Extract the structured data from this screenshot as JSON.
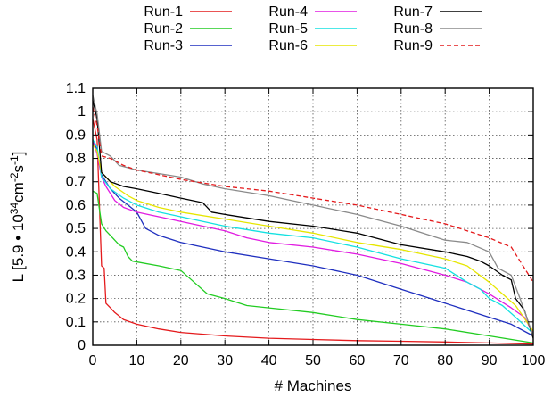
{
  "chart_data": {
    "type": "line",
    "title": "",
    "xlabel": "# Machines",
    "ylabel": {
      "prefix": "L [5.9 • 10",
      "exp1": "34",
      "mid": "cm",
      "exp2": "-2",
      "mid2": "s",
      "exp3": "-1",
      "suffix": "]"
    },
    "xlim": [
      0,
      100
    ],
    "ylim": [
      0,
      1.1
    ],
    "xticks": [
      "0",
      "10",
      "20",
      "30",
      "40",
      "50",
      "60",
      "70",
      "80",
      "90",
      "100"
    ],
    "yticks": [
      "0",
      "0.1",
      "0.2",
      "0.3",
      "0.4",
      "0.5",
      "0.6",
      "0.7",
      "0.8",
      "0.9",
      "1",
      "1.1"
    ],
    "grid": true,
    "legend_position": "top",
    "series": [
      {
        "name": "Run-1",
        "color": "#e41a1c",
        "dash": "solid",
        "points": [
          [
            0,
            0.97
          ],
          [
            1,
            0.88
          ],
          [
            2,
            0.34
          ],
          [
            2.6,
            0.33
          ],
          [
            3,
            0.18
          ],
          [
            4,
            0.16
          ],
          [
            5,
            0.14
          ],
          [
            7,
            0.11
          ],
          [
            10,
            0.09
          ],
          [
            15,
            0.07
          ],
          [
            20,
            0.055
          ],
          [
            30,
            0.04
          ],
          [
            40,
            0.03
          ],
          [
            50,
            0.025
          ],
          [
            60,
            0.02
          ],
          [
            70,
            0.017
          ],
          [
            80,
            0.014
          ],
          [
            90,
            0.01
          ],
          [
            100,
            0.005
          ]
        ]
      },
      {
        "name": "Run-2",
        "color": "#22cc22",
        "dash": "solid",
        "points": [
          [
            0,
            0.66
          ],
          [
            1,
            0.65
          ],
          [
            2,
            0.52
          ],
          [
            3,
            0.49
          ],
          [
            4,
            0.47
          ],
          [
            5,
            0.45
          ],
          [
            6,
            0.43
          ],
          [
            7,
            0.42
          ],
          [
            8,
            0.38
          ],
          [
            9,
            0.36
          ],
          [
            15,
            0.34
          ],
          [
            20,
            0.32
          ],
          [
            23,
            0.27
          ],
          [
            26,
            0.22
          ],
          [
            30,
            0.2
          ],
          [
            35,
            0.17
          ],
          [
            40,
            0.16
          ],
          [
            50,
            0.14
          ],
          [
            60,
            0.11
          ],
          [
            70,
            0.09
          ],
          [
            80,
            0.07
          ],
          [
            90,
            0.04
          ],
          [
            100,
            0.01
          ]
        ]
      },
      {
        "name": "Run-3",
        "color": "#1f2fbf",
        "dash": "solid",
        "points": [
          [
            0,
            0.87
          ],
          [
            1,
            0.84
          ],
          [
            2,
            0.73
          ],
          [
            3,
            0.7
          ],
          [
            4,
            0.67
          ],
          [
            6,
            0.63
          ],
          [
            8,
            0.6
          ],
          [
            10,
            0.57
          ],
          [
            12,
            0.5
          ],
          [
            15,
            0.47
          ],
          [
            20,
            0.44
          ],
          [
            25,
            0.42
          ],
          [
            30,
            0.4
          ],
          [
            40,
            0.37
          ],
          [
            50,
            0.34
          ],
          [
            60,
            0.3
          ],
          [
            70,
            0.24
          ],
          [
            75,
            0.21
          ],
          [
            80,
            0.18
          ],
          [
            85,
            0.15
          ],
          [
            90,
            0.12
          ],
          [
            95,
            0.09
          ],
          [
            100,
            0.04
          ]
        ]
      },
      {
        "name": "Run-4",
        "color": "#e11be1",
        "dash": "solid",
        "points": [
          [
            0,
            0.88
          ],
          [
            1,
            0.82
          ],
          [
            2,
            0.72
          ],
          [
            3,
            0.68
          ],
          [
            5,
            0.62
          ],
          [
            7,
            0.59
          ],
          [
            10,
            0.57
          ],
          [
            15,
            0.55
          ],
          [
            20,
            0.53
          ],
          [
            25,
            0.51
          ],
          [
            30,
            0.49
          ],
          [
            35,
            0.46
          ],
          [
            40,
            0.44
          ],
          [
            50,
            0.42
          ],
          [
            60,
            0.39
          ],
          [
            70,
            0.35
          ],
          [
            80,
            0.3
          ],
          [
            85,
            0.27
          ],
          [
            90,
            0.22
          ],
          [
            95,
            0.16
          ],
          [
            98,
            0.12
          ],
          [
            100,
            0.05
          ]
        ]
      },
      {
        "name": "Run-5",
        "color": "#14e1e1",
        "dash": "solid",
        "points": [
          [
            0,
            0.88
          ],
          [
            1,
            0.85
          ],
          [
            2,
            0.72
          ],
          [
            4,
            0.67
          ],
          [
            7,
            0.63
          ],
          [
            10,
            0.6
          ],
          [
            15,
            0.57
          ],
          [
            20,
            0.55
          ],
          [
            30,
            0.51
          ],
          [
            40,
            0.48
          ],
          [
            50,
            0.46
          ],
          [
            60,
            0.42
          ],
          [
            70,
            0.37
          ],
          [
            80,
            0.33
          ],
          [
            85,
            0.27
          ],
          [
            88,
            0.24
          ],
          [
            90,
            0.2
          ],
          [
            93,
            0.17
          ],
          [
            96,
            0.12
          ],
          [
            100,
            0.05
          ]
        ]
      },
      {
        "name": "Run-6",
        "color": "#e6e600",
        "dash": "solid",
        "points": [
          [
            0,
            0.86
          ],
          [
            1,
            0.83
          ],
          [
            2,
            0.74
          ],
          [
            3,
            0.72
          ],
          [
            5,
            0.68
          ],
          [
            8,
            0.64
          ],
          [
            10,
            0.62
          ],
          [
            15,
            0.59
          ],
          [
            20,
            0.57
          ],
          [
            30,
            0.54
          ],
          [
            40,
            0.51
          ],
          [
            50,
            0.48
          ],
          [
            60,
            0.44
          ],
          [
            70,
            0.41
          ],
          [
            80,
            0.37
          ],
          [
            85,
            0.34
          ],
          [
            90,
            0.27
          ],
          [
            93,
            0.22
          ],
          [
            96,
            0.17
          ],
          [
            100,
            0.06
          ]
        ]
      },
      {
        "name": "Run-7",
        "color": "#000000",
        "dash": "solid",
        "points": [
          [
            0,
            1.05
          ],
          [
            1,
            0.97
          ],
          [
            2,
            0.74
          ],
          [
            4,
            0.7
          ],
          [
            7,
            0.68
          ],
          [
            10,
            0.67
          ],
          [
            15,
            0.65
          ],
          [
            20,
            0.63
          ],
          [
            25,
            0.61
          ],
          [
            27,
            0.57
          ],
          [
            30,
            0.56
          ],
          [
            40,
            0.53
          ],
          [
            50,
            0.51
          ],
          [
            60,
            0.48
          ],
          [
            70,
            0.43
          ],
          [
            80,
            0.4
          ],
          [
            85,
            0.38
          ],
          [
            88,
            0.36
          ],
          [
            90,
            0.34
          ],
          [
            93,
            0.3
          ],
          [
            95,
            0.28
          ],
          [
            96,
            0.2
          ],
          [
            98,
            0.15
          ],
          [
            100,
            0.03
          ]
        ]
      },
      {
        "name": "Run-8",
        "color": "#8a8a8a",
        "dash": "solid",
        "points": [
          [
            0,
            1.07
          ],
          [
            1,
            0.99
          ],
          [
            2,
            0.83
          ],
          [
            4,
            0.81
          ],
          [
            6,
            0.77
          ],
          [
            10,
            0.75
          ],
          [
            20,
            0.72
          ],
          [
            25,
            0.69
          ],
          [
            30,
            0.67
          ],
          [
            40,
            0.64
          ],
          [
            50,
            0.6
          ],
          [
            60,
            0.56
          ],
          [
            70,
            0.51
          ],
          [
            80,
            0.45
          ],
          [
            85,
            0.44
          ],
          [
            90,
            0.4
          ],
          [
            92,
            0.33
          ],
          [
            95,
            0.3
          ],
          [
            97,
            0.2
          ],
          [
            100,
            0.04
          ]
        ]
      },
      {
        "name": "Run-9",
        "color": "#e41a1c",
        "dash": "dashed",
        "points": [
          [
            0,
            1.02
          ],
          [
            1,
            0.94
          ],
          [
            2,
            0.81
          ],
          [
            4,
            0.8
          ],
          [
            7,
            0.77
          ],
          [
            10,
            0.75
          ],
          [
            20,
            0.71
          ],
          [
            30,
            0.68
          ],
          [
            40,
            0.66
          ],
          [
            50,
            0.63
          ],
          [
            60,
            0.6
          ],
          [
            70,
            0.56
          ],
          [
            80,
            0.52
          ],
          [
            85,
            0.49
          ],
          [
            90,
            0.46
          ],
          [
            95,
            0.42
          ],
          [
            97,
            0.36
          ],
          [
            100,
            0.27
          ]
        ]
      }
    ]
  }
}
